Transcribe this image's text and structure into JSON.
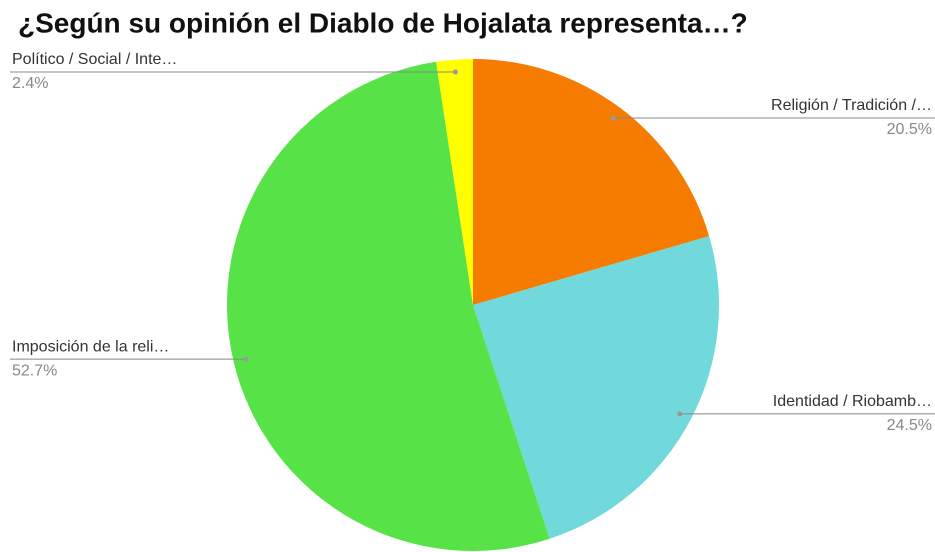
{
  "chart_data": {
    "type": "pie",
    "title": "¿Según su opinión el Diablo de Hojalata representa…?",
    "categories": [
      "Religión / Tradición /…",
      "Identidad / Riobamb…",
      "Imposición de la reli…",
      "Político / Social / Inte…"
    ],
    "values": [
      20.5,
      24.5,
      52.7,
      2.4
    ],
    "value_labels": [
      "20.5%",
      "24.5%",
      "52.7%",
      "2.4%"
    ],
    "colors": [
      "#f57c00",
      "#71d9db",
      "#57e348",
      "#ffff00"
    ]
  }
}
